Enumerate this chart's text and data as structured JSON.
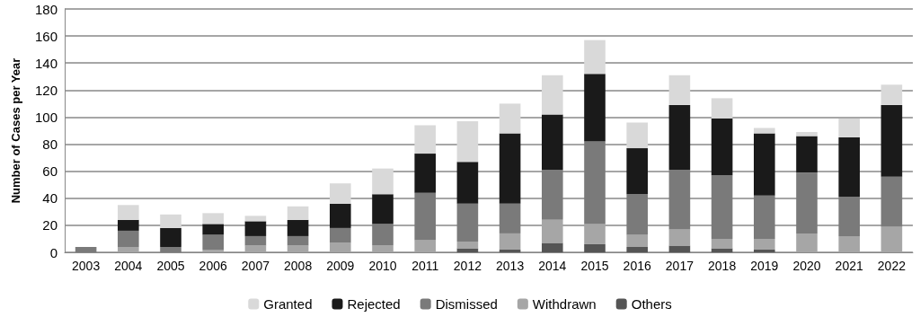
{
  "chart_data": {
    "type": "bar",
    "stacked": true,
    "ylabel": "Number of Cases per Year",
    "categories": [
      "2003",
      "2004",
      "2005",
      "2006",
      "2007",
      "2008",
      "2009",
      "2010",
      "2011",
      "2012",
      "2013",
      "2014",
      "2015",
      "2016",
      "2017",
      "2018",
      "2019",
      "2020",
      "2021",
      "2022"
    ],
    "series": [
      {
        "name": "Others",
        "color": "#555555",
        "values": [
          0,
          0,
          0,
          0,
          0,
          0,
          0,
          0,
          0,
          3,
          2,
          7,
          6,
          4,
          5,
          3,
          2,
          0,
          0,
          0
        ]
      },
      {
        "name": "Withdrawn",
        "color": "#a6a6a6",
        "values": [
          0,
          4,
          0,
          2,
          5,
          5,
          7,
          5,
          9,
          5,
          12,
          17,
          15,
          9,
          12,
          7,
          8,
          14,
          12,
          19
        ]
      },
      {
        "name": "Dismissed",
        "color": "#7a7a7a",
        "values": [
          4,
          12,
          4,
          11,
          7,
          7,
          11,
          16,
          35,
          28,
          22,
          37,
          61,
          30,
          44,
          47,
          32,
          45,
          29,
          37
        ]
      },
      {
        "name": "Rejected",
        "color": "#1a1a1a",
        "values": [
          0,
          8,
          14,
          8,
          11,
          12,
          18,
          22,
          29,
          31,
          52,
          41,
          50,
          34,
          48,
          42,
          46,
          27,
          44,
          53
        ]
      },
      {
        "name": "Granted",
        "color": "#d9d9d9",
        "values": [
          0,
          11,
          10,
          8,
          4,
          10,
          15,
          19,
          21,
          30,
          22,
          29,
          25,
          19,
          22,
          15,
          4,
          3,
          14,
          15
        ]
      }
    ],
    "ylim": [
      0,
      180
    ],
    "yticks": [
      0,
      20,
      40,
      60,
      80,
      100,
      120,
      140,
      160,
      180
    ],
    "grid": "y",
    "legend": "bottom"
  }
}
